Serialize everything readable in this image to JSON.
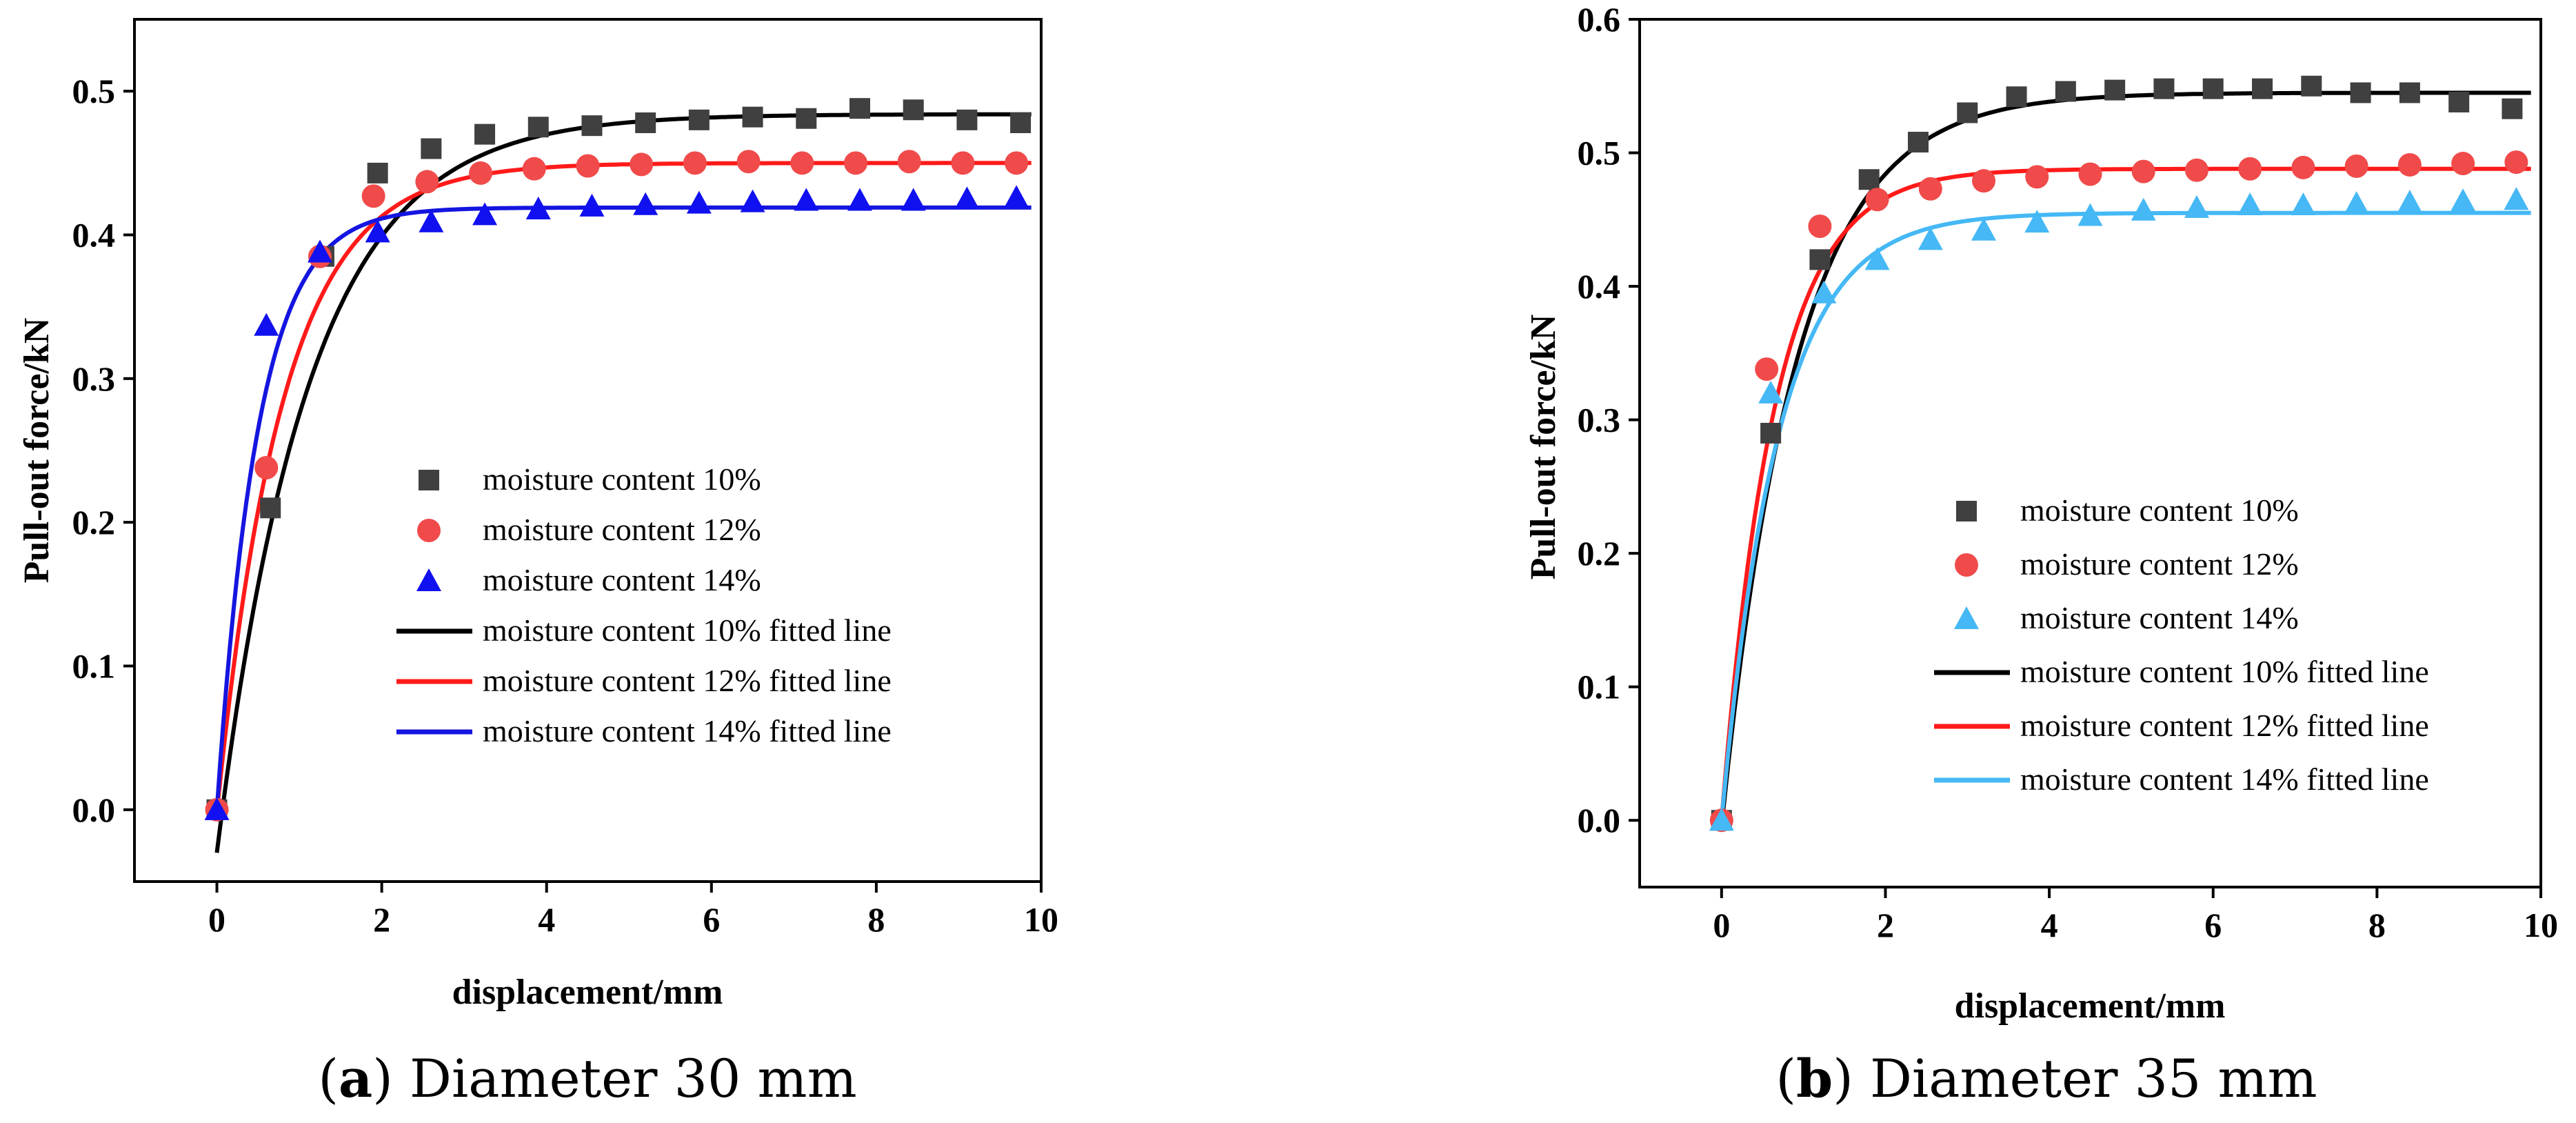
{
  "chart_data": [
    {
      "type": "scatter",
      "caption": {
        "open": "(",
        "letter": "a",
        "close": ") ",
        "text": "Diameter 30 mm"
      },
      "xlabel": "displacement/mm",
      "ylabel": "Pull-out force/kN",
      "xlim": [
        -1,
        10
      ],
      "ylim": [
        -0.05,
        0.55
      ],
      "xticks": [
        0,
        2,
        4,
        6,
        8,
        10
      ],
      "yticks": [
        0.0,
        0.1,
        0.2,
        0.3,
        0.4,
        0.5
      ],
      "ytick_labels": [
        "0.0",
        "0.1",
        "0.2",
        "0.3",
        "0.4",
        "0.5"
      ],
      "legend_position": "center-right",
      "series": [
        {
          "name": "moisture content 10%",
          "marker": "square",
          "color": "#404040",
          "x": [
            0,
            0.65,
            1.3,
            1.95,
            2.6,
            3.25,
            3.9,
            4.55,
            5.2,
            5.85,
            6.5,
            7.15,
            7.8,
            8.45,
            9.1,
            9.75
          ],
          "y": [
            0.0,
            0.21,
            0.385,
            0.443,
            0.46,
            0.47,
            0.475,
            0.476,
            0.478,
            0.48,
            0.482,
            0.481,
            0.488,
            0.487,
            0.48,
            0.478
          ]
        },
        {
          "name": "moisture content 12%",
          "marker": "circle",
          "color": "#f04a4a",
          "x": [
            0,
            0.6,
            1.25,
            1.9,
            2.55,
            3.2,
            3.85,
            4.5,
            5.15,
            5.8,
            6.45,
            7.1,
            7.75,
            8.4,
            9.05,
            9.7
          ],
          "y": [
            0.0,
            0.238,
            0.385,
            0.427,
            0.437,
            0.443,
            0.446,
            0.448,
            0.449,
            0.45,
            0.451,
            0.45,
            0.45,
            0.451,
            0.45,
            0.45
          ]
        },
        {
          "name": "moisture content 14%",
          "marker": "triangle",
          "color": "#1010f0",
          "x": [
            0,
            0.6,
            1.25,
            1.95,
            2.6,
            3.25,
            3.9,
            4.55,
            5.2,
            5.85,
            6.5,
            7.15,
            7.8,
            8.45,
            9.1,
            9.7
          ],
          "y": [
            0.0,
            0.337,
            0.388,
            0.402,
            0.409,
            0.414,
            0.418,
            0.42,
            0.421,
            0.422,
            0.423,
            0.424,
            0.424,
            0.424,
            0.425,
            0.426
          ]
        }
      ],
      "fits": [
        {
          "name": "moisture content 10% fitted line",
          "color": "#000000",
          "amplitude": 0.514,
          "offset": -0.03,
          "rate": 0.9
        },
        {
          "name": "moisture content 12% fitted line",
          "color": "#ff1a1a",
          "amplitude": 0.452,
          "offset": -0.002,
          "rate": 1.25
        },
        {
          "name": "moisture content 14% fitted line",
          "color": "#1515e0",
          "amplitude": 0.419,
          "offset": 0.0,
          "rate": 2.0
        }
      ]
    },
    {
      "type": "scatter",
      "caption": {
        "open": "(",
        "letter": "b",
        "close": ") ",
        "text": "Diameter 35 mm"
      },
      "xlabel": "displacement/mm",
      "ylabel": "Pull-out force/kN",
      "xlim": [
        -1,
        10
      ],
      "ylim": [
        -0.05,
        0.6
      ],
      "xticks": [
        0,
        2,
        4,
        6,
        8,
        10
      ],
      "yticks": [
        0.0,
        0.1,
        0.2,
        0.3,
        0.4,
        0.5,
        0.6
      ],
      "ytick_labels": [
        "0.0",
        "0.1",
        "0.2",
        "0.3",
        "0.4",
        "0.5",
        "0.6"
      ],
      "legend_position": "center-right",
      "series": [
        {
          "name": "moisture content 10%",
          "marker": "square",
          "color": "#404040",
          "x": [
            0,
            0.6,
            1.2,
            1.8,
            2.4,
            3.0,
            3.6,
            4.2,
            4.8,
            5.4,
            6.0,
            6.6,
            7.2,
            7.8,
            8.4,
            9.0,
            9.65
          ],
          "y": [
            0.0,
            0.29,
            0.42,
            0.48,
            0.508,
            0.53,
            0.542,
            0.546,
            0.547,
            0.548,
            0.548,
            0.548,
            0.55,
            0.545,
            0.545,
            0.538,
            0.533
          ]
        },
        {
          "name": "moisture content 12%",
          "marker": "circle",
          "color": "#f04a4a",
          "x": [
            0,
            0.55,
            1.2,
            1.9,
            2.55,
            3.2,
            3.85,
            4.5,
            5.15,
            5.8,
            6.45,
            7.1,
            7.75,
            8.4,
            9.05,
            9.7
          ],
          "y": [
            0.0,
            0.338,
            0.445,
            0.465,
            0.473,
            0.479,
            0.482,
            0.484,
            0.486,
            0.487,
            0.488,
            0.489,
            0.49,
            0.491,
            0.492,
            0.493
          ]
        },
        {
          "name": "moisture content 14%",
          "marker": "triangle",
          "color": "#45b8f5",
          "x": [
            0,
            0.6,
            1.25,
            1.9,
            2.55,
            3.2,
            3.85,
            4.5,
            5.15,
            5.8,
            6.45,
            7.1,
            7.75,
            8.4,
            9.05,
            9.7
          ],
          "y": [
            0.0,
            0.32,
            0.395,
            0.42,
            0.435,
            0.442,
            0.448,
            0.453,
            0.457,
            0.459,
            0.461,
            0.461,
            0.462,
            0.463,
            0.464,
            0.465
          ]
        }
      ],
      "fits": [
        {
          "name": "moisture content 10% fitted line",
          "color": "#000000",
          "amplitude": 0.55,
          "offset": -0.005,
          "rate": 1.1
        },
        {
          "name": "moisture content 12% fitted line",
          "color": "#ff1a1a",
          "amplitude": 0.488,
          "offset": 0.0,
          "rate": 1.55
        },
        {
          "name": "moisture content 14% fitted line",
          "color": "#45b8f5",
          "amplitude": 0.455,
          "offset": 0.0,
          "rate": 1.45
        }
      ]
    }
  ]
}
